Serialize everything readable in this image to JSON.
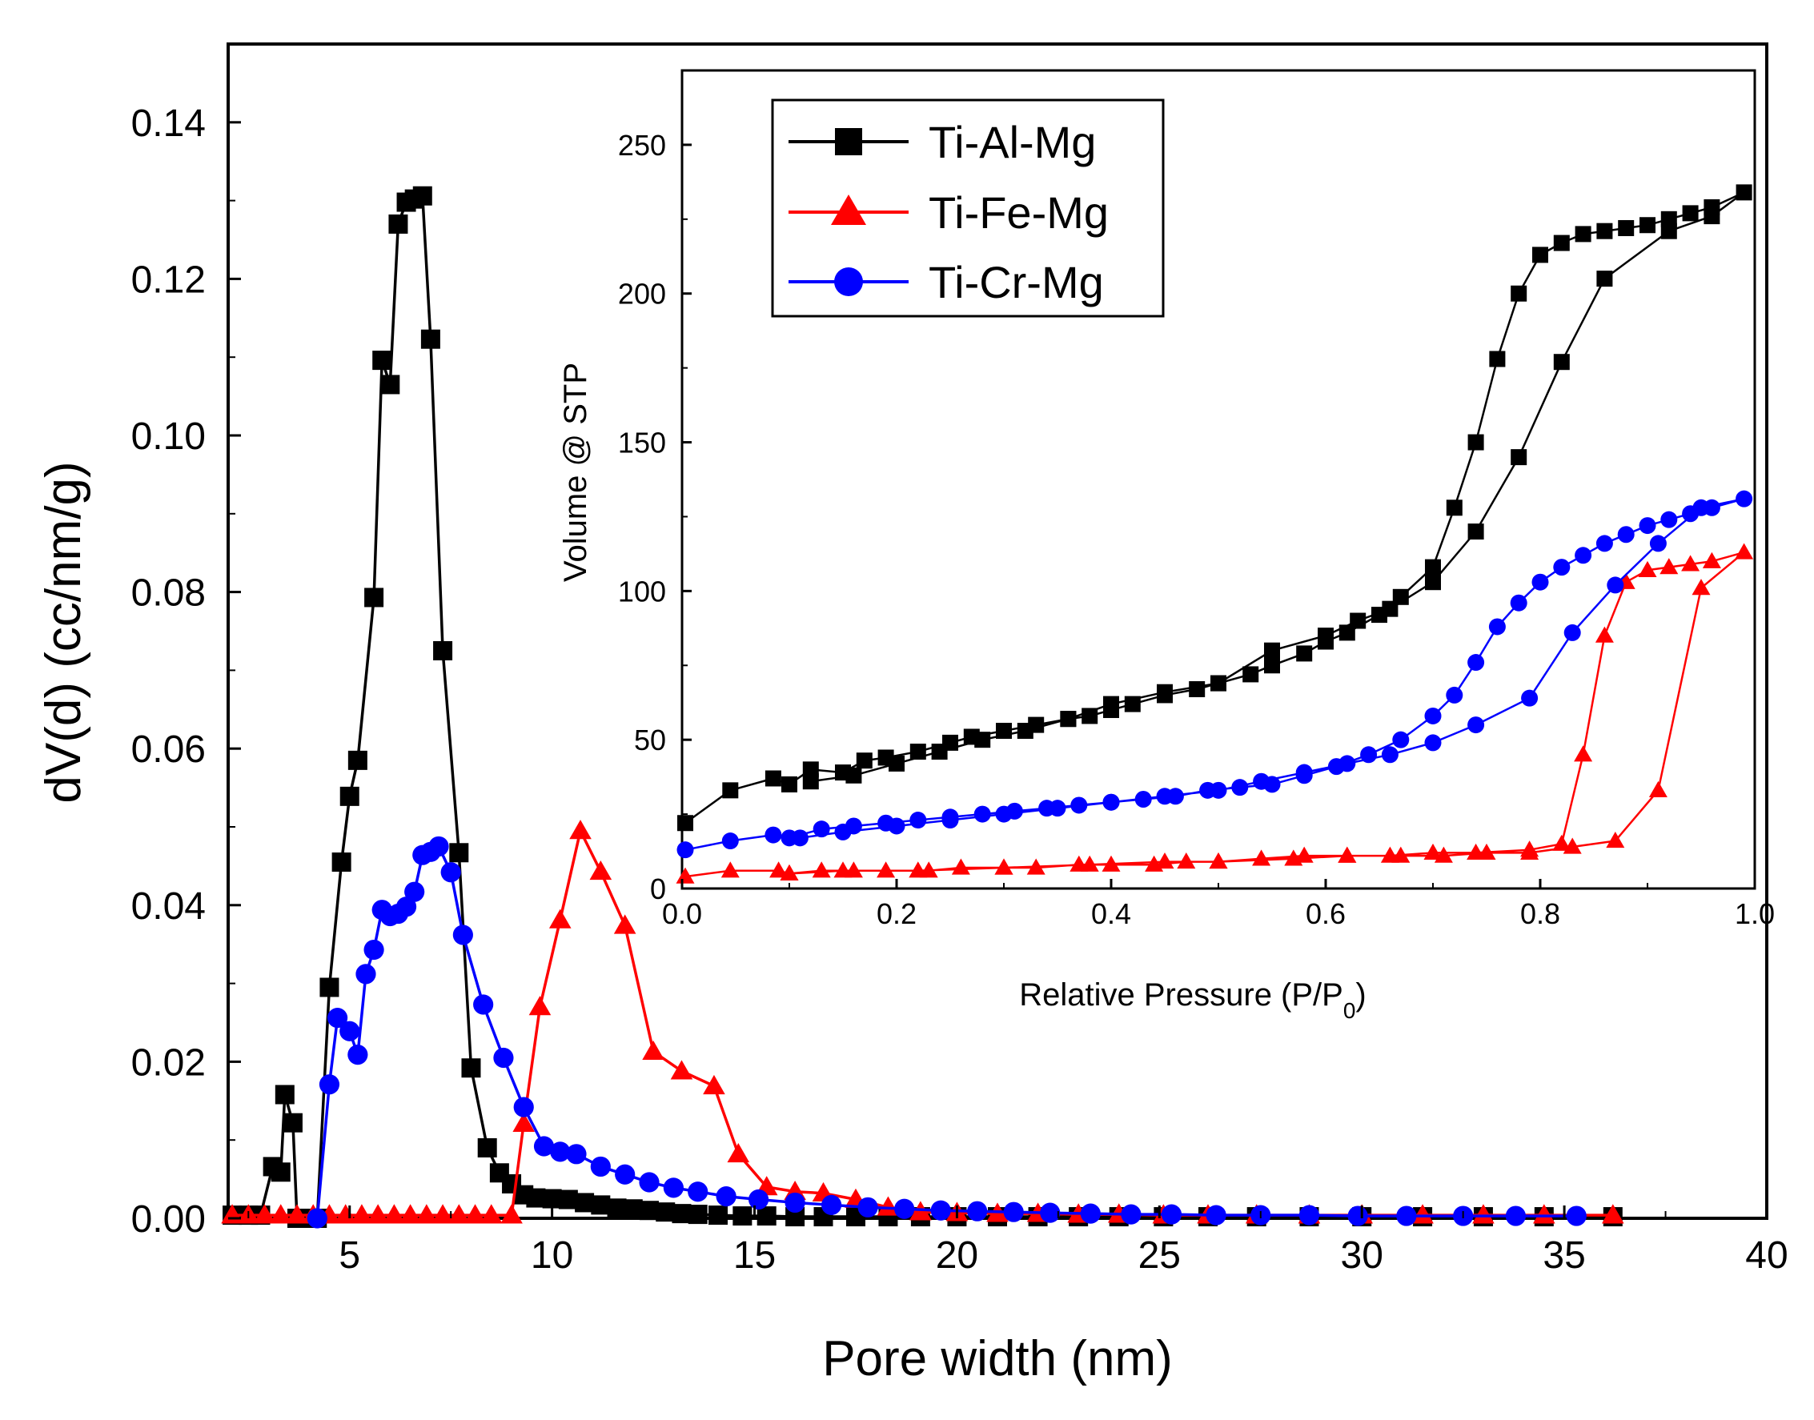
{
  "chart_data": [
    {
      "id": "main",
      "type": "line",
      "xlabel": "Pore width (nm)",
      "ylabel": "dV(d) (cc/nm/g)",
      "xlim": [
        2,
        40
      ],
      "ylim": [
        0,
        0.15
      ],
      "xticks": [
        5,
        10,
        15,
        20,
        25,
        30,
        35,
        40
      ],
      "yticks": [
        0.0,
        0.02,
        0.04,
        0.06,
        0.08,
        0.1,
        0.12,
        0.14
      ],
      "xtick_labels": [
        "5",
        "10",
        "15",
        "20",
        "25",
        "30",
        "35",
        "40"
      ],
      "ytick_labels": [
        "0.00",
        "0.02",
        "0.04",
        "0.06",
        "0.08",
        "0.10",
        "0.12",
        "0.14"
      ],
      "grid": false,
      "series": [
        {
          "name": "Ti-Al-Mg",
          "color": "#000000",
          "marker": "square",
          "x": [
            2.1,
            2.5,
            2.8,
            3.1,
            3.3,
            3.4,
            3.6,
            3.7,
            3.9,
            4.2,
            4.5,
            4.8,
            5.0,
            5.2,
            5.6,
            5.8,
            6.0,
            6.2,
            6.4,
            6.6,
            6.8,
            7.0,
            7.3,
            7.7,
            8.0,
            8.4,
            8.7,
            9.0,
            9.3,
            9.6,
            10.0,
            10.4,
            10.8,
            11.2,
            11.6,
            12.0,
            12.4,
            12.8,
            13.2,
            13.6,
            14.1,
            14.7,
            15.3,
            16.0,
            16.7,
            17.5,
            18.3,
            19.1,
            20.0,
            21.0,
            22.0,
            23.0,
            24.0,
            25.1,
            26.2,
            27.4,
            28.7,
            30.0,
            31.5,
            33.0,
            34.5,
            36.2
          ],
          "y": [
            0.0004,
            0.0004,
            0.0004,
            0.0066,
            0.0059,
            0.0158,
            0.0122,
            0.0,
            0.0,
            0.0,
            0.0295,
            0.0455,
            0.0539,
            0.0585,
            0.0793,
            0.1096,
            0.1065,
            0.127,
            0.1298,
            0.1302,
            0.1306,
            0.1123,
            0.0725,
            0.0467,
            0.0192,
            0.009,
            0.0058,
            0.0044,
            0.003,
            0.0026,
            0.0025,
            0.0024,
            0.002,
            0.0017,
            0.0013,
            0.0012,
            0.001,
            0.0008,
            0.0006,
            0.0005,
            0.0004,
            0.0003,
            0.0003,
            0.0002,
            0.0002,
            0.0002,
            0.0002,
            0.0002,
            0.0002,
            0.0002,
            0.0002,
            0.0002,
            0.0002,
            0.0002,
            0.0002,
            0.0002,
            0.0002,
            0.0002,
            0.0002,
            0.0002,
            0.0002,
            0.0002
          ]
        },
        {
          "name": "Ti-Fe-Mg",
          "color": "#ff0000",
          "marker": "triangle",
          "x": [
            2.1,
            2.5,
            2.9,
            3.3,
            3.7,
            4.1,
            4.5,
            4.9,
            5.3,
            5.7,
            6.1,
            6.5,
            6.9,
            7.3,
            7.7,
            8.1,
            8.5,
            9.0,
            9.3,
            9.7,
            10.2,
            10.7,
            11.2,
            11.8,
            12.5,
            13.2,
            14.0,
            14.6,
            15.3,
            16.0,
            16.7,
            17.5,
            18.3,
            19.1,
            20.0,
            21.0,
            22.0,
            23.0,
            24.0,
            25.1,
            26.2,
            27.4,
            28.7,
            30.0,
            31.5,
            33.0,
            34.5,
            36.2
          ],
          "y": [
            0.0004,
            0.0004,
            0.0004,
            0.0004,
            0.0004,
            0.0004,
            0.0004,
            0.0004,
            0.0004,
            0.0004,
            0.0004,
            0.0004,
            0.0004,
            0.0004,
            0.0004,
            0.0004,
            0.0004,
            0.0004,
            0.0121,
            0.027,
            0.0381,
            0.0495,
            0.0443,
            0.0374,
            0.0213,
            0.0188,
            0.0169,
            0.0082,
            0.004,
            0.0034,
            0.0032,
            0.0024,
            0.0014,
            0.0008,
            0.0007,
            0.0006,
            0.0006,
            0.0005,
            0.0005,
            0.0004,
            0.0004,
            0.0004,
            0.0004,
            0.0004,
            0.0004,
            0.0004,
            0.0004,
            0.0004
          ]
        },
        {
          "name": "Ti-Cr-Mg",
          "color": "#0000ff",
          "marker": "circle",
          "x": [
            4.2,
            4.5,
            4.7,
            5.0,
            5.2,
            5.4,
            5.6,
            5.8,
            6.0,
            6.2,
            6.4,
            6.6,
            6.8,
            7.0,
            7.2,
            7.5,
            7.8,
            8.3,
            8.8,
            9.3,
            9.8,
            10.2,
            10.6,
            11.2,
            11.8,
            12.4,
            13.0,
            13.6,
            14.3,
            15.1,
            16.0,
            16.9,
            17.8,
            18.7,
            19.6,
            20.5,
            21.4,
            22.3,
            23.3,
            24.3,
            25.3,
            26.4,
            27.5,
            28.7,
            29.9,
            31.1,
            32.5,
            33.8,
            35.3
          ],
          "y": [
            0.0,
            0.0171,
            0.0256,
            0.0239,
            0.0209,
            0.0312,
            0.0343,
            0.0394,
            0.0386,
            0.0389,
            0.0398,
            0.0417,
            0.0464,
            0.0468,
            0.0475,
            0.0442,
            0.0362,
            0.0273,
            0.0205,
            0.0142,
            0.0092,
            0.0085,
            0.0082,
            0.0066,
            0.0056,
            0.0046,
            0.0039,
            0.0034,
            0.0028,
            0.0024,
            0.002,
            0.0017,
            0.0014,
            0.0012,
            0.001,
            0.0009,
            0.0008,
            0.0007,
            0.0006,
            0.0005,
            0.0005,
            0.0004,
            0.0004,
            0.0004,
            0.0003,
            0.0003,
            0.0003,
            0.0003,
            0.0003
          ]
        }
      ]
    },
    {
      "id": "inset",
      "type": "line",
      "xlabel": "Relative Pressure (P/P",
      "xlabel_sub": "0",
      "xlabel_end": ")",
      "ylabel": "Volume @ STP",
      "xlim": [
        0,
        1.0
      ],
      "ylim": [
        0,
        275
      ],
      "xticks": [
        0.0,
        0.2,
        0.4,
        0.6,
        0.8,
        1.0
      ],
      "yticks": [
        0,
        50,
        100,
        150,
        200,
        250
      ],
      "xtick_labels": [
        "0.0",
        "0.2",
        "0.4",
        "0.6",
        "0.8",
        "1.0"
      ],
      "ytick_labels": [
        "0",
        "50",
        "100",
        "150",
        "200",
        "250"
      ],
      "grid": false,
      "legend_position": "top-left",
      "series": [
        {
          "name": "Ti-Al-Mg",
          "color": "#000000",
          "marker": "square",
          "x": [
            0.003,
            0.045,
            0.085,
            0.1,
            0.12,
            0.15,
            0.17,
            0.19,
            0.22,
            0.25,
            0.27,
            0.3,
            0.33,
            0.36,
            0.38,
            0.4,
            0.42,
            0.45,
            0.48,
            0.5,
            0.53,
            0.55,
            0.58,
            0.6,
            0.62,
            0.65,
            0.67,
            0.7,
            0.72,
            0.74,
            0.76,
            0.78,
            0.8,
            0.82,
            0.84,
            0.86,
            0.88,
            0.9,
            0.92,
            0.94,
            0.96,
            0.99,
            0.96,
            0.92,
            0.86,
            0.82,
            0.78,
            0.74,
            0.7,
            0.66,
            0.63,
            0.6,
            0.55,
            0.5,
            0.45,
            0.4,
            0.36,
            0.32,
            0.28,
            0.24,
            0.2,
            0.16,
            0.12
          ],
          "y": [
            22,
            33,
            37,
            35,
            40,
            39,
            43,
            44,
            46,
            49,
            51,
            53,
            55,
            57,
            58,
            60,
            62,
            65,
            67,
            69,
            72,
            75,
            79,
            83,
            86,
            92,
            98,
            108,
            128,
            150,
            178,
            200,
            213,
            217,
            220,
            221,
            222,
            223,
            225,
            227,
            229,
            234,
            226,
            221,
            205,
            177,
            145,
            120,
            103,
            94,
            90,
            85,
            80,
            69,
            66,
            62,
            57,
            53,
            50,
            46,
            42,
            38,
            36
          ]
        },
        {
          "name": "Ti-Fe-Mg",
          "color": "#ff0000",
          "marker": "triangle",
          "x": [
            0.003,
            0.045,
            0.09,
            0.1,
            0.13,
            0.16,
            0.19,
            0.23,
            0.26,
            0.3,
            0.33,
            0.37,
            0.4,
            0.44,
            0.47,
            0.5,
            0.54,
            0.58,
            0.62,
            0.66,
            0.7,
            0.74,
            0.79,
            0.82,
            0.84,
            0.86,
            0.88,
            0.9,
            0.92,
            0.94,
            0.96,
            0.99,
            0.95,
            0.91,
            0.87,
            0.83,
            0.79,
            0.75,
            0.71,
            0.67,
            0.62,
            0.57,
            0.5,
            0.45,
            0.38,
            0.3,
            0.22,
            0.15,
            0.1
          ],
          "y": [
            4,
            6,
            6,
            5,
            6,
            6,
            6,
            6,
            7,
            7,
            7,
            8,
            8,
            8,
            9,
            9,
            10,
            11,
            11,
            11,
            12,
            12,
            13,
            15,
            45,
            85,
            103,
            107,
            108,
            109,
            110,
            113,
            101,
            33,
            16,
            14,
            12,
            12,
            11,
            11,
            11,
            10,
            9,
            9,
            8,
            7,
            6,
            6,
            5
          ]
        },
        {
          "name": "Ti-Cr-Mg",
          "color": "#0000ff",
          "marker": "circle",
          "x": [
            0.003,
            0.045,
            0.085,
            0.1,
            0.13,
            0.16,
            0.19,
            0.22,
            0.25,
            0.28,
            0.31,
            0.34,
            0.37,
            0.4,
            0.43,
            0.46,
            0.49,
            0.52,
            0.55,
            0.58,
            0.61,
            0.64,
            0.67,
            0.7,
            0.72,
            0.74,
            0.76,
            0.78,
            0.8,
            0.82,
            0.84,
            0.86,
            0.88,
            0.9,
            0.92,
            0.94,
            0.96,
            0.99,
            0.95,
            0.91,
            0.87,
            0.83,
            0.79,
            0.74,
            0.7,
            0.66,
            0.62,
            0.58,
            0.54,
            0.5,
            0.45,
            0.4,
            0.35,
            0.3,
            0.25,
            0.2,
            0.15,
            0.11
          ],
          "y": [
            13,
            16,
            18,
            17,
            20,
            21,
            22,
            23,
            24,
            25,
            26,
            27,
            28,
            29,
            30,
            31,
            33,
            34,
            35,
            38,
            41,
            45,
            50,
            58,
            65,
            76,
            88,
            96,
            103,
            108,
            112,
            116,
            119,
            122,
            124,
            126,
            128,
            131,
            128,
            116,
            102,
            86,
            64,
            55,
            49,
            45,
            42,
            39,
            36,
            33,
            31,
            29,
            27,
            25,
            23,
            21,
            19,
            17
          ]
        }
      ]
    }
  ]
}
